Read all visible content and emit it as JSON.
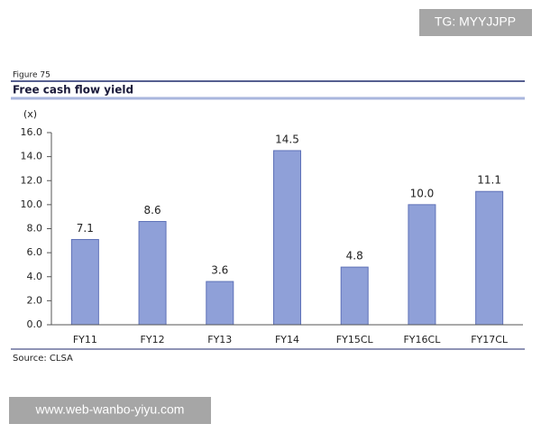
{
  "chart_data": {
    "type": "bar",
    "figure_label": "Figure 75",
    "title": "Free cash flow yield",
    "y_label": "(x)",
    "categories": [
      "FY11",
      "FY12",
      "FY13",
      "FY14",
      "FY15CL",
      "FY16CL",
      "FY17CL"
    ],
    "values": [
      7.1,
      8.6,
      3.6,
      14.5,
      4.8,
      10.0,
      11.1
    ],
    "value_labels": [
      "7.1",
      "8.6",
      "3.6",
      "14.5",
      "4.8",
      "10.0",
      "11.1"
    ],
    "color": "#8fa0d8",
    "ylim": [
      0,
      16
    ],
    "yticks": [
      {
        "value": 0,
        "label": "0.0"
      },
      {
        "value": 2,
        "label": "2.0"
      },
      {
        "value": 4,
        "label": "4.0"
      },
      {
        "value": 6,
        "label": "6.0"
      },
      {
        "value": 8,
        "label": "8.0"
      },
      {
        "value": 10,
        "label": "10.0"
      },
      {
        "value": 12,
        "label": "12.0"
      },
      {
        "value": 14,
        "label": "14.0"
      },
      {
        "value": 16,
        "label": "16.0"
      }
    ],
    "grid": false,
    "source": "Source: CLSA"
  },
  "watermarks": [
    "TG: MYYJJPP",
    "www.web-wanbo-yiyu.com"
  ]
}
